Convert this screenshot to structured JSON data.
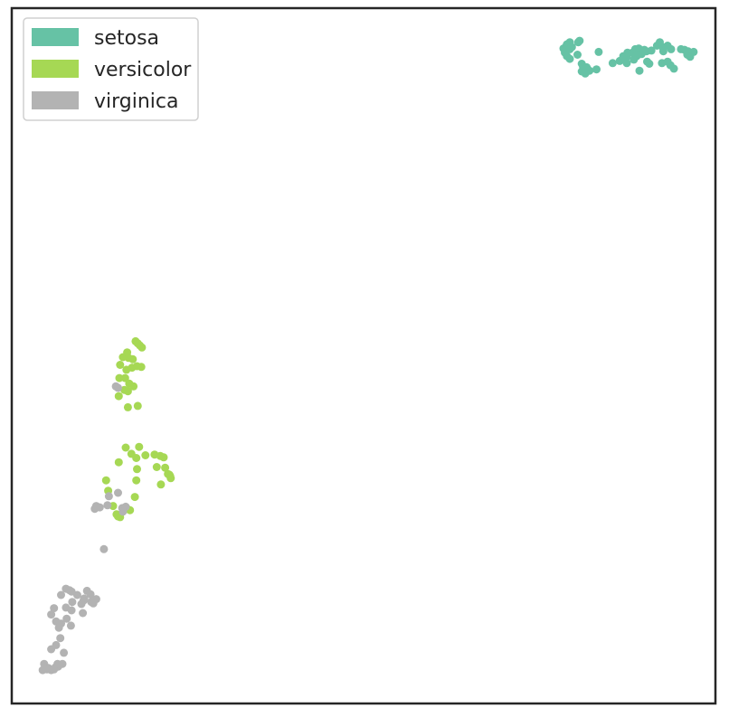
{
  "chart_data": {
    "type": "scatter",
    "title": "",
    "xlabel": "",
    "ylabel": "",
    "xlim": [
      0,
      100
    ],
    "ylim": [
      0,
      100
    ],
    "ticks_visible": false,
    "grid": false,
    "legend": {
      "position": "top-left"
    },
    "series": [
      {
        "name": "setosa",
        "color": "#66c2a5",
        "points": [
          [
            78.4,
            94.2
          ],
          [
            78.6,
            93.6
          ],
          [
            78.7,
            94.4
          ],
          [
            78.9,
            93.1
          ],
          [
            78.9,
            94.8
          ],
          [
            79.3,
            94.1
          ],
          [
            79.3,
            95.1
          ],
          [
            79.6,
            94.4
          ],
          [
            79.3,
            92.7
          ],
          [
            80.4,
            93.3
          ],
          [
            80.5,
            95.1
          ],
          [
            80.7,
            95.3
          ],
          [
            81.0,
            92.0
          ],
          [
            81.0,
            90.9
          ],
          [
            81.2,
            91.5
          ],
          [
            81.8,
            91.3
          ],
          [
            81.7,
            91.5
          ],
          [
            82.1,
            91.0
          ],
          [
            81.5,
            90.6
          ],
          [
            83.1,
            91.2
          ],
          [
            83.4,
            93.7
          ],
          [
            85.4,
            92.1
          ],
          [
            86.4,
            92.4
          ],
          [
            86.9,
            93.1
          ],
          [
            87.4,
            93.0
          ],
          [
            87.5,
            93.6
          ],
          [
            88.2,
            93.6
          ],
          [
            88.6,
            94.1
          ],
          [
            88.8,
            93.1
          ],
          [
            89.1,
            94.2
          ],
          [
            89.5,
            93.4
          ],
          [
            89.9,
            94.0
          ],
          [
            90.2,
            93.8
          ],
          [
            90.3,
            92.3
          ],
          [
            90.6,
            92.0
          ],
          [
            90.9,
            93.9
          ],
          [
            91.7,
            94.6
          ],
          [
            92.1,
            95.1
          ],
          [
            92.5,
            94.4
          ],
          [
            92.6,
            93.8
          ],
          [
            93.2,
            94.6
          ],
          [
            93.7,
            94.1
          ],
          [
            92.4,
            92.1
          ],
          [
            93.2,
            92.3
          ],
          [
            93.6,
            91.8
          ],
          [
            94.1,
            91.3
          ],
          [
            95.1,
            94.1
          ],
          [
            95.6,
            94.0
          ],
          [
            96.0,
            93.3
          ],
          [
            96.1,
            93.8
          ],
          [
            96.4,
            93.0
          ],
          [
            96.9,
            93.7
          ],
          [
            87.4,
            92.1
          ],
          [
            89.2,
            91.0
          ],
          [
            87.0,
            92.9
          ],
          [
            88.4,
            92.6
          ]
        ]
      },
      {
        "name": "versicolor",
        "color": "#a6d854",
        "points": [
          [
            17.6,
            52.1
          ],
          [
            17.9,
            51.8
          ],
          [
            18.2,
            51.5
          ],
          [
            18.5,
            51.2
          ],
          [
            16.4,
            50.5
          ],
          [
            15.8,
            49.8
          ],
          [
            16.6,
            49.7
          ],
          [
            17.2,
            49.5
          ],
          [
            15.4,
            48.7
          ],
          [
            18.4,
            48.4
          ],
          [
            17.1,
            48.3
          ],
          [
            17.8,
            48.5
          ],
          [
            16.3,
            48.0
          ],
          [
            16.1,
            46.8
          ],
          [
            15.3,
            46.8
          ],
          [
            16.7,
            46.0
          ],
          [
            17.3,
            45.6
          ],
          [
            16.0,
            45.1
          ],
          [
            16.5,
            44.9
          ],
          [
            15.2,
            44.2
          ],
          [
            17.9,
            42.8
          ],
          [
            16.5,
            42.6
          ],
          [
            16.2,
            36.8
          ],
          [
            18.1,
            36.9
          ],
          [
            17.0,
            35.9
          ],
          [
            17.7,
            35.3
          ],
          [
            19.0,
            35.7
          ],
          [
            20.3,
            35.8
          ],
          [
            21.1,
            35.6
          ],
          [
            21.6,
            35.4
          ],
          [
            20.6,
            34.0
          ],
          [
            21.8,
            33.9
          ],
          [
            22.2,
            33.0
          ],
          [
            22.4,
            32.9
          ],
          [
            22.6,
            32.4
          ],
          [
            22.5,
            32.7
          ],
          [
            15.2,
            34.7
          ],
          [
            17.8,
            33.7
          ],
          [
            13.4,
            32.1
          ],
          [
            21.2,
            31.5
          ],
          [
            17.7,
            32.1
          ],
          [
            13.7,
            30.6
          ],
          [
            17.5,
            29.7
          ],
          [
            14.4,
            28.4
          ],
          [
            16.0,
            28.1
          ],
          [
            16.8,
            27.8
          ],
          [
            14.9,
            27.2
          ],
          [
            15.4,
            26.8
          ],
          [
            16.4,
            28.0
          ],
          [
            15.1,
            26.9
          ]
        ]
      },
      {
        "name": "virginica",
        "color": "#b3b3b3",
        "points": [
          [
            14.8,
            45.6
          ],
          [
            15.1,
            45.4
          ],
          [
            12.0,
            28.4
          ],
          [
            12.5,
            28.2
          ],
          [
            11.8,
            28.0
          ],
          [
            13.6,
            28.5
          ],
          [
            13.8,
            29.8
          ],
          [
            15.1,
            30.3
          ],
          [
            16.2,
            28.3
          ],
          [
            15.7,
            28.1
          ],
          [
            15.8,
            27.6
          ],
          [
            13.1,
            22.2
          ],
          [
            8.2,
            16.3
          ],
          [
            8.5,
            16.1
          ],
          [
            7.7,
            16.5
          ],
          [
            9.3,
            15.6
          ],
          [
            10.7,
            16.2
          ],
          [
            10.3,
            15.1
          ],
          [
            11.2,
            15.7
          ],
          [
            10.2,
            14.8
          ],
          [
            7.0,
            15.6
          ],
          [
            8.6,
            14.6
          ],
          [
            9.9,
            14.3
          ],
          [
            11.3,
            14.6
          ],
          [
            12.0,
            15.0
          ],
          [
            11.6,
            14.4
          ],
          [
            6.0,
            13.7
          ],
          [
            5.6,
            12.8
          ],
          [
            7.7,
            13.8
          ],
          [
            8.5,
            13.4
          ],
          [
            10.1,
            13.0
          ],
          [
            7.8,
            12.2
          ],
          [
            7.0,
            11.5
          ],
          [
            8.4,
            11.2
          ],
          [
            6.3,
            11.8
          ],
          [
            6.7,
            10.9
          ],
          [
            6.9,
            9.4
          ],
          [
            6.3,
            8.4
          ],
          [
            7.4,
            7.3
          ],
          [
            5.6,
            7.8
          ],
          [
            4.6,
            5.7
          ],
          [
            5.2,
            5.1
          ],
          [
            6.5,
            5.7
          ],
          [
            5.6,
            4.8
          ],
          [
            6.2,
            5.2
          ],
          [
            6.6,
            5.3
          ],
          [
            4.4,
            4.8
          ],
          [
            5.0,
            4.9
          ],
          [
            6.0,
            4.9
          ],
          [
            7.2,
            5.7
          ]
        ]
      }
    ]
  }
}
